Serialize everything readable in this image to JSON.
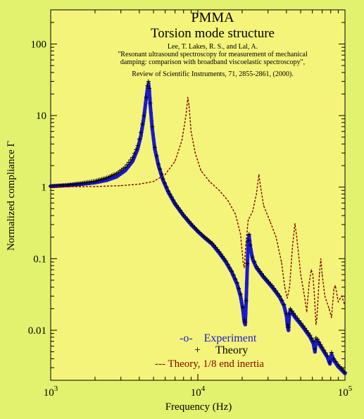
{
  "chart_data": {
    "type": "line",
    "title": "PMMA",
    "subtitle": "Torsion mode structure",
    "reference_lines": [
      "Lee, T. Lakes, R. S., and Lal, A.",
      "\"Resonant ultrasound spectroscopy for measurement of mechanical",
      "damping: comparison with broadband viscoelastic spectroscopy\",",
      "Review of Scientific Instruments, 71, 2855-2861, (2000)."
    ],
    "xlabel": "Frequency (Hz)",
    "ylabel": "Normalized compliance Γ",
    "x_scale": "log",
    "y_scale": "log",
    "xlim": [
      1000,
      100000
    ],
    "ylim": [
      0.002,
      300
    ],
    "x_ticks": [
      {
        "value": 1000,
        "base": "10",
        "exp": "3"
      },
      {
        "value": 10000,
        "base": "10",
        "exp": "4"
      },
      {
        "value": 100000,
        "base": "10",
        "exp": "5"
      }
    ],
    "y_ticks": [
      {
        "value": 100,
        "label": "100"
      },
      {
        "value": 10,
        "label": "10"
      },
      {
        "value": 1,
        "label": "1"
      },
      {
        "value": 0.1,
        "label": "0.1"
      },
      {
        "value": 0.01,
        "label": "0.01"
      }
    ],
    "grid": false,
    "legend_position": "bottom-center",
    "series": [
      {
        "name": "Experiment",
        "legend_label": "-o-    Experiment",
        "color": "#1a1acc",
        "style": "circles",
        "points": [
          [
            1000,
            1.03
          ],
          [
            1300,
            1.06
          ],
          [
            1600,
            1.1
          ],
          [
            2000,
            1.16
          ],
          [
            2400,
            1.25
          ],
          [
            2800,
            1.4
          ],
          [
            3200,
            1.7
          ],
          [
            3600,
            2.3
          ],
          [
            3900,
            3.4
          ],
          [
            4100,
            5.2
          ],
          [
            4300,
            9.5
          ],
          [
            4450,
            17
          ],
          [
            4550,
            24
          ],
          [
            4620,
            28
          ],
          [
            4680,
            22
          ],
          [
            4750,
            14
          ],
          [
            4900,
            6.5
          ],
          [
            5100,
            3.4
          ],
          [
            5400,
            2.0
          ],
          [
            5800,
            1.25
          ],
          [
            6300,
            0.85
          ],
          [
            7000,
            0.58
          ],
          [
            8000,
            0.4
          ],
          [
            9000,
            0.3
          ],
          [
            10000,
            0.24
          ],
          [
            11000,
            0.2
          ],
          [
            12500,
            0.16
          ],
          [
            14000,
            0.12
          ],
          [
            15500,
            0.09
          ],
          [
            17000,
            0.065
          ],
          [
            18500,
            0.044
          ],
          [
            19500,
            0.03
          ],
          [
            20200,
            0.02
          ],
          [
            20700,
            0.013
          ],
          [
            21000,
            0.012
          ],
          [
            21300,
            0.025
          ],
          [
            21700,
            0.08
          ],
          [
            22000,
            0.17
          ],
          [
            22300,
            0.21
          ],
          [
            22700,
            0.15
          ],
          [
            23500,
            0.1
          ],
          [
            25000,
            0.075
          ],
          [
            28000,
            0.055
          ],
          [
            32000,
            0.04
          ],
          [
            36000,
            0.029
          ],
          [
            38500,
            0.022
          ],
          [
            40000,
            0.016
          ],
          [
            40800,
            0.011
          ],
          [
            41300,
            0.01
          ],
          [
            41800,
            0.016
          ],
          [
            42500,
            0.019
          ],
          [
            46000,
            0.015
          ],
          [
            52000,
            0.011
          ],
          [
            58000,
            0.008
          ],
          [
            61000,
            0.0065
          ],
          [
            62500,
            0.005
          ],
          [
            63500,
            0.0072
          ],
          [
            65000,
            0.007
          ],
          [
            70000,
            0.0055
          ],
          [
            76000,
            0.0042
          ],
          [
            79000,
            0.0034
          ],
          [
            81000,
            0.0046
          ],
          [
            84000,
            0.0038
          ],
          [
            90000,
            0.0031
          ],
          [
            100000,
            0.0025
          ]
        ]
      },
      {
        "name": "Theory",
        "legend_label": "Theory",
        "color": "#000000",
        "style": "plus",
        "points": [
          [
            1000,
            1.03
          ],
          [
            1300,
            1.07
          ],
          [
            1600,
            1.13
          ],
          [
            2000,
            1.22
          ],
          [
            2400,
            1.35
          ],
          [
            2800,
            1.55
          ],
          [
            3200,
            1.9
          ],
          [
            3600,
            2.6
          ],
          [
            3900,
            3.8
          ],
          [
            4100,
            5.8
          ],
          [
            4300,
            10
          ],
          [
            4450,
            18
          ],
          [
            4550,
            26
          ],
          [
            4620,
            30
          ],
          [
            4680,
            24
          ],
          [
            4750,
            15
          ],
          [
            4900,
            7
          ],
          [
            5100,
            3.6
          ],
          [
            5400,
            2.1
          ],
          [
            5800,
            1.3
          ],
          [
            6300,
            0.88
          ],
          [
            7000,
            0.6
          ],
          [
            8000,
            0.41
          ],
          [
            9000,
            0.31
          ],
          [
            10000,
            0.245
          ],
          [
            11000,
            0.205
          ],
          [
            12500,
            0.165
          ],
          [
            14000,
            0.125
          ],
          [
            15500,
            0.093
          ],
          [
            17000,
            0.067
          ],
          [
            18500,
            0.046
          ],
          [
            19500,
            0.032
          ],
          [
            20200,
            0.021
          ],
          [
            20700,
            0.014
          ],
          [
            21000,
            0.013
          ],
          [
            21300,
            0.026
          ],
          [
            21700,
            0.085
          ],
          [
            22000,
            0.18
          ],
          [
            22300,
            0.22
          ],
          [
            22700,
            0.155
          ],
          [
            23500,
            0.105
          ],
          [
            25000,
            0.078
          ],
          [
            28000,
            0.057
          ],
          [
            32000,
            0.042
          ],
          [
            36000,
            0.03
          ],
          [
            38500,
            0.023
          ],
          [
            40000,
            0.017
          ],
          [
            40800,
            0.012
          ],
          [
            41300,
            0.011
          ],
          [
            41800,
            0.017
          ],
          [
            42500,
            0.02
          ],
          [
            46000,
            0.016
          ],
          [
            52000,
            0.0115
          ],
          [
            58000,
            0.0085
          ],
          [
            61000,
            0.007
          ],
          [
            62500,
            0.0055
          ],
          [
            63500,
            0.0078
          ],
          [
            65000,
            0.0075
          ],
          [
            70000,
            0.0058
          ],
          [
            76000,
            0.0044
          ],
          [
            79000,
            0.0036
          ],
          [
            81000,
            0.0049
          ],
          [
            84000,
            0.004
          ],
          [
            90000,
            0.0033
          ],
          [
            100000,
            0.0026
          ]
        ]
      },
      {
        "name": "Theory, 1/8 end inertia",
        "legend_label": "--- Theory, 1/8 end inertia",
        "color": "#8b0000",
        "style": "dashed",
        "points": [
          [
            1000,
            1.01
          ],
          [
            2000,
            1.02
          ],
          [
            3000,
            1.05
          ],
          [
            4000,
            1.1
          ],
          [
            5000,
            1.2
          ],
          [
            6000,
            1.5
          ],
          [
            7000,
            2.3
          ],
          [
            7800,
            4.5
          ],
          [
            8300,
            10
          ],
          [
            8550,
            18
          ],
          [
            8700,
            14
          ],
          [
            9000,
            6
          ],
          [
            9600,
            3
          ],
          [
            10500,
            1.7
          ],
          [
            12000,
            1.2
          ],
          [
            14000,
            0.9
          ],
          [
            16000,
            0.65
          ],
          [
            18000,
            0.42
          ],
          [
            19500,
            0.22
          ],
          [
            20300,
            0.09
          ],
          [
            20700,
            0.075
          ],
          [
            21200,
            0.16
          ],
          [
            22000,
            0.35
          ],
          [
            23500,
            0.45
          ],
          [
            25000,
            0.8
          ],
          [
            26000,
            1.5
          ],
          [
            26700,
            1.0
          ],
          [
            28000,
            0.55
          ],
          [
            31000,
            0.33
          ],
          [
            34000,
            0.2
          ],
          [
            37000,
            0.09
          ],
          [
            39000,
            0.04
          ],
          [
            40500,
            0.028
          ],
          [
            42000,
            0.04
          ],
          [
            44000,
            0.15
          ],
          [
            45700,
            0.31
          ],
          [
            47000,
            0.2
          ],
          [
            50000,
            0.06
          ],
          [
            53000,
            0.03
          ],
          [
            55000,
            0.018
          ],
          [
            57000,
            0.045
          ],
          [
            59000,
            0.07
          ],
          [
            60500,
            0.06
          ],
          [
            62000,
            0.03
          ],
          [
            63500,
            0.012
          ],
          [
            64500,
            0.015
          ],
          [
            67000,
            0.06
          ],
          [
            68500,
            0.1
          ],
          [
            70000,
            0.06
          ],
          [
            73000,
            0.03
          ],
          [
            78000,
            0.02
          ],
          [
            81000,
            0.015
          ],
          [
            84000,
            0.038
          ],
          [
            86000,
            0.042
          ],
          [
            90000,
            0.025
          ],
          [
            95000,
            0.03
          ],
          [
            100000,
            0.022
          ]
        ]
      }
    ]
  }
}
